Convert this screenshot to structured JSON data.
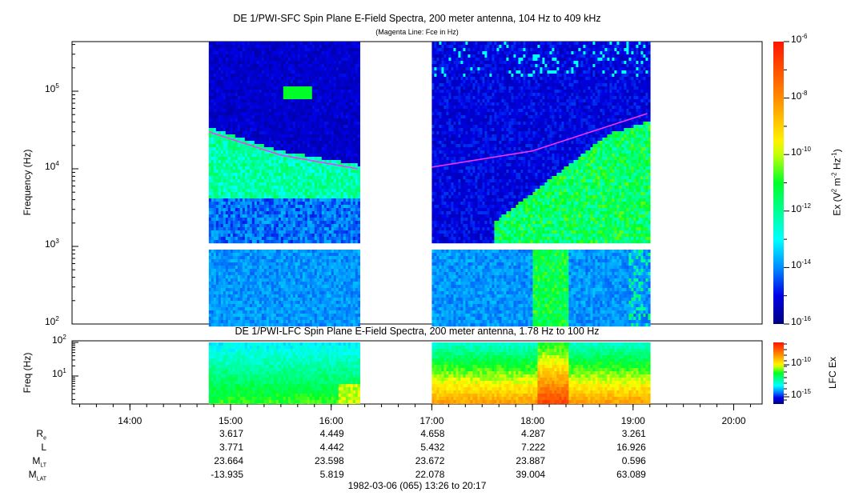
{
  "chart_data": [
    {
      "type": "heatmap",
      "title": "DE 1/PWI-SFC  Spin Plane E-Field Spectra, 200 meter antenna, 104 Hz to 409 kHz",
      "subtitle": "(Magenta Line: Fce in Hz)",
      "ylabel": "Frequency (Hz)",
      "yscale": "log",
      "ylim": [
        100,
        409000
      ],
      "yticks": [
        "10",
        "10",
        "10",
        "10"
      ],
      "ytick_exp": [
        "2",
        "3",
        "4",
        "5"
      ],
      "data_segments_utc": [
        [
          "14:47",
          "16:16"
        ],
        [
          "17:00",
          "19:09"
        ]
      ],
      "colorbar": {
        "label": "Ex (V",
        "label_mid": "2",
        "label_m": " m",
        "label_mexp": "-2",
        "label_hz": " Hz",
        "label_hzexp": "-1",
        "label_end": ")",
        "range": [
          1e-16,
          1e-06
        ],
        "ticks": [
          "10",
          "10",
          "10",
          "10",
          "10",
          "10"
        ],
        "tick_exp": [
          "-6",
          "-8",
          "-10",
          "-12",
          "-14",
          "-16"
        ]
      },
      "fce_line": {
        "color": "#ff33ff",
        "points": [
          [
            "14:47",
            30000
          ],
          [
            "15:30",
            15000
          ],
          [
            "16:16",
            10000
          ],
          [
            "17:00",
            10500
          ],
          [
            "18:00",
            17000
          ],
          [
            "19:09",
            52000
          ]
        ]
      }
    },
    {
      "type": "heatmap",
      "title": "DE 1/PWI-LFC  Spin Plane E-Field Spectra, 200 meter antenna, 1.78 Hz to 100 Hz",
      "ylabel": "Freq (Hz)",
      "yscale": "log",
      "ylim": [
        1.78,
        100
      ],
      "yticks": [
        "10",
        "10"
      ],
      "ytick_exp": [
        "2",
        "1"
      ],
      "colorbar": {
        "label": "LFC Ex",
        "ticks": [
          "10",
          "10"
        ],
        "tick_exp": [
          "-10",
          "-15"
        ]
      }
    }
  ],
  "xaxis": {
    "ticks": [
      "14:00",
      "15:00",
      "16:00",
      "17:00",
      "18:00",
      "19:00",
      "20:00"
    ],
    "range_utc": [
      "13:26",
      "20:17"
    ]
  },
  "ephemeris": {
    "rows": [
      {
        "label": "R",
        "sub": "e",
        "values": [
          "3.617",
          "4.449",
          "4.658",
          "4.287",
          "3.261"
        ]
      },
      {
        "label": "L",
        "sub": "",
        "values": [
          "3.771",
          "4.442",
          "5.432",
          "7.222",
          "16.926"
        ]
      },
      {
        "label": "M",
        "sub": "LT",
        "values": [
          "23.664",
          "23.598",
          "23.672",
          "23.887",
          "0.596"
        ]
      },
      {
        "label": "M",
        "sub": "LAT",
        "values": [
          "-13.935",
          "5.819",
          "22.078",
          "39.004",
          "63.089"
        ]
      }
    ]
  },
  "footer": "1982-03-06 (065) 13:26 to 20:17"
}
